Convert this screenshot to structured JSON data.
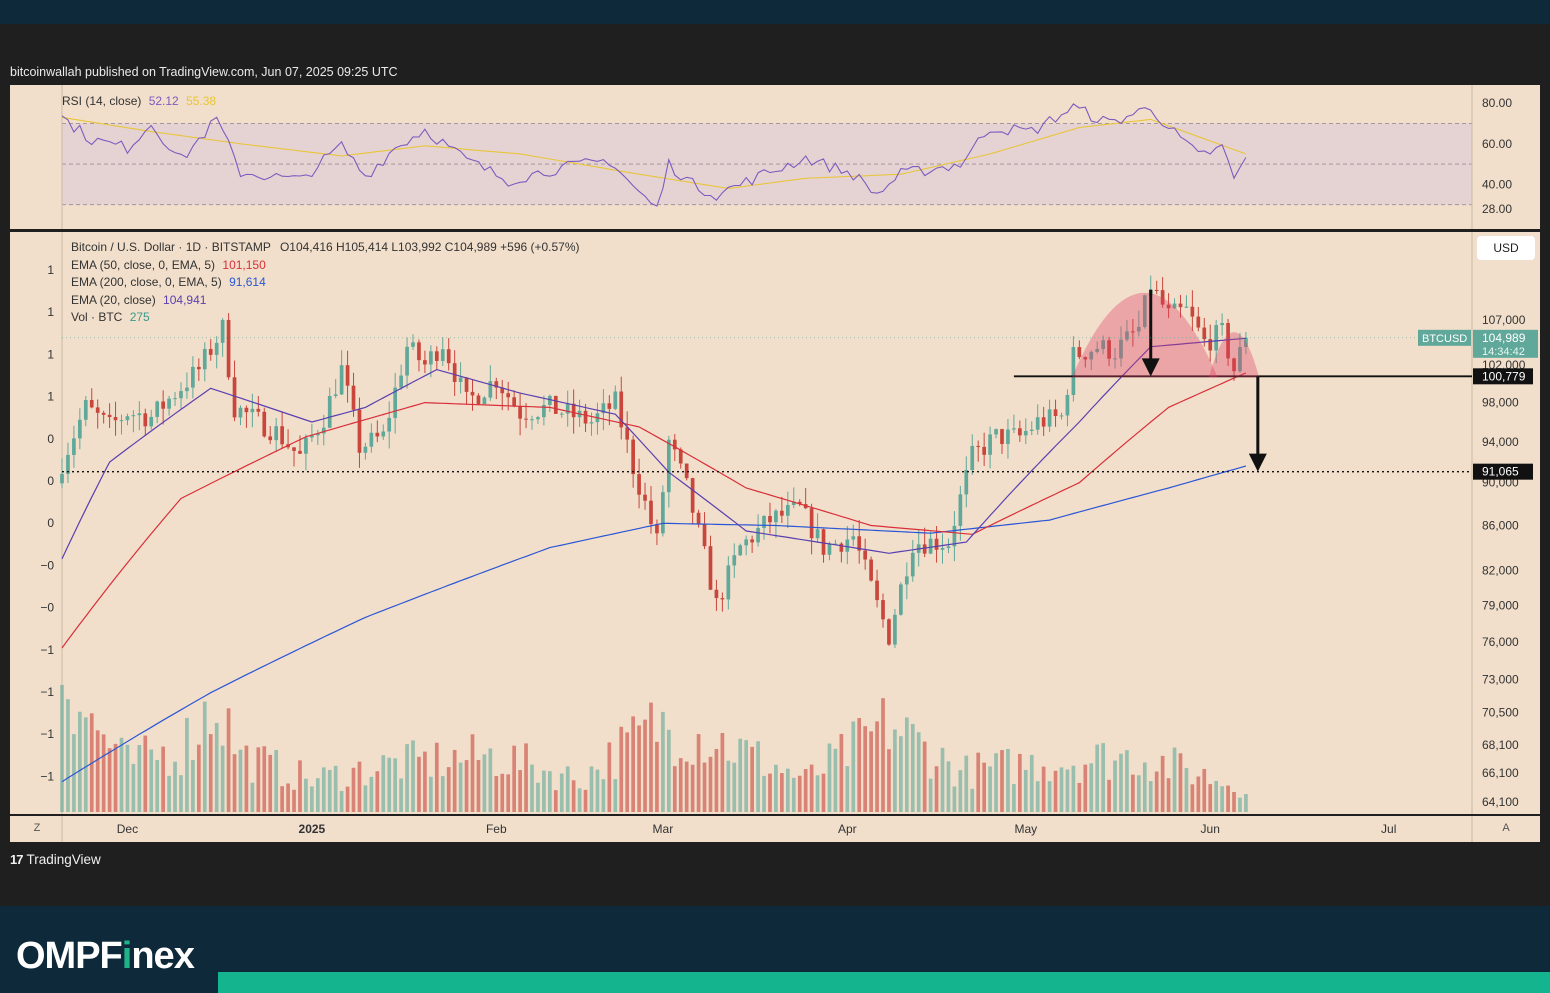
{
  "header": {
    "publisher_line": "bitcoinwallah published on TradingView.com, Jun 07, 2025 09:25 UTC"
  },
  "rsi": {
    "label": "RSI (14, close)",
    "value": "52.12",
    "ma_value": "55.38",
    "ticks": [
      "80.00",
      "60.00",
      "40.00",
      "28.00"
    ],
    "rsi_color": "#7e5bbf",
    "ma_color": "#e8c53a"
  },
  "legend": {
    "symbol": "Bitcoin / U.S. Dollar · 1D · BITSTAMP",
    "ohlc": "O104,416 H105,414 L103,992 C104,989 +596 (+0.57%)",
    "ema50_label": "EMA (50, close, 0, EMA, 5)",
    "ema50_value": "101,150",
    "ema200_label": "EMA (200, close, 0, EMA, 5)",
    "ema200_value": "91,614",
    "ema20_label": "EMA (20, close)",
    "ema20_value": "104,941",
    "vol_label": "Vol · BTC",
    "vol_value": "275"
  },
  "price_axis": {
    "ticks": [
      "107,000",
      "102,000",
      "98,000",
      "94,000",
      "90,000",
      "86,000",
      "82,000",
      "79,000",
      "76,000",
      "73,000",
      "70,500",
      "68,100",
      "66,100",
      "64,100"
    ],
    "currency_button": "USD",
    "symbol_tag": "BTCUSD",
    "last_price": "104,989",
    "countdown": "14:34:42",
    "support_label": "100,779",
    "target_label": "91,065"
  },
  "left_axis_ticks": [
    "1",
    "1",
    "1",
    "1",
    "0",
    "0",
    "0",
    "−0",
    "−0",
    "−1",
    "−1",
    "−1",
    "−1"
  ],
  "time_axis": {
    "labels": [
      "Dec",
      "2025",
      "Feb",
      "Mar",
      "Apr",
      "May",
      "Jun",
      "Jul"
    ],
    "left_button": "Z",
    "right_button": "A"
  },
  "footer": {
    "tradingview": "TradingView",
    "brand_part1": "OMPF",
    "brand_i": "i",
    "brand_part2": "nex"
  },
  "colors": {
    "up": "#5fa89a",
    "down": "#c8463c",
    "ema20": "#5a3fb0",
    "ema50": "#d92f3a",
    "ema200": "#2a56d6",
    "pattern": "#e23c63",
    "panel": "#f1dfcb"
  },
  "chart_data": {
    "type": "candlestick",
    "title": "Bitcoin / U.S. Dollar · 1D · BITSTAMP",
    "x_labels": [
      "Dec",
      "2025",
      "Feb",
      "Mar",
      "Apr",
      "May",
      "Jun",
      "Jul"
    ],
    "x_start": "2024-11-20",
    "x_end": "2025-07-15",
    "ylim": [
      64100,
      112000
    ],
    "y_scale": "log",
    "grid": false,
    "pivots": [
      [
        "2024-11-20",
        92000
      ],
      [
        "2024-11-24",
        97500
      ],
      [
        "2024-11-28",
        95500
      ],
      [
        "2024-12-01",
        97000
      ],
      [
        "2024-12-05",
        96500
      ],
      [
        "2024-12-09",
        99000
      ],
      [
        "2024-12-13",
        101500
      ],
      [
        "2024-12-17",
        106000
      ],
      [
        "2024-12-19",
        97500
      ],
      [
        "2024-12-26",
        95000
      ],
      [
        "2024-12-30",
        92500
      ],
      [
        "2025-01-03",
        96500
      ],
      [
        "2025-01-06",
        101500
      ],
      [
        "2025-01-09",
        93500
      ],
      [
        "2025-01-13",
        94500
      ],
      [
        "2025-01-17",
        104000
      ],
      [
        "2025-01-20",
        102000
      ],
      [
        "2025-01-23",
        104500
      ],
      [
        "2025-01-27",
        98000
      ],
      [
        "2025-02-01",
        100500
      ],
      [
        "2025-02-05",
        97000
      ],
      [
        "2025-02-10",
        97500
      ],
      [
        "2025-02-17",
        96000
      ],
      [
        "2025-02-21",
        98000
      ],
      [
        "2025-02-24",
        91500
      ],
      [
        "2025-02-28",
        84500
      ],
      [
        "2025-03-02",
        94000
      ],
      [
        "2025-03-05",
        89500
      ],
      [
        "2025-03-10",
        79000
      ],
      [
        "2025-03-14",
        84000
      ],
      [
        "2025-03-19",
        86500
      ],
      [
        "2025-03-24",
        87500
      ],
      [
        "2025-03-28",
        84000
      ],
      [
        "2025-04-02",
        85000
      ],
      [
        "2025-04-06",
        79000
      ],
      [
        "2025-04-08",
        76500
      ],
      [
        "2025-04-12",
        84500
      ],
      [
        "2025-04-18",
        84500
      ],
      [
        "2025-04-22",
        92500
      ],
      [
        "2025-04-26",
        94500
      ],
      [
        "2025-04-30",
        94500
      ],
      [
        "2025-05-03",
        96000
      ],
      [
        "2025-05-07",
        96500
      ],
      [
        "2025-05-09",
        103000
      ],
      [
        "2025-05-13",
        104000
      ],
      [
        "2025-05-16",
        103500
      ],
      [
        "2025-05-20",
        106000
      ],
      [
        "2025-05-22",
        111000
      ],
      [
        "2025-05-25",
        107500
      ],
      [
        "2025-05-28",
        108000
      ],
      [
        "2025-05-31",
        104500
      ],
      [
        "2025-06-03",
        105500
      ],
      [
        "2025-06-05",
        101500
      ],
      [
        "2025-06-07",
        104989
      ]
    ],
    "ema20_pivots": [
      [
        "2024-11-20",
        83000
      ],
      [
        "2024-11-28",
        92000
      ],
      [
        "2024-12-15",
        99500
      ],
      [
        "2025-01-01",
        96000
      ],
      [
        "2025-01-10",
        97500
      ],
      [
        "2025-01-22",
        101500
      ],
      [
        "2025-02-05",
        99000
      ],
      [
        "2025-02-21",
        96800
      ],
      [
        "2025-03-02",
        91000
      ],
      [
        "2025-03-15",
        85500
      ],
      [
        "2025-04-08",
        83500
      ],
      [
        "2025-04-21",
        84500
      ],
      [
        "2025-05-10",
        96000
      ],
      [
        "2025-05-22",
        104000
      ],
      [
        "2025-06-07",
        104941
      ]
    ],
    "ema50_pivots": [
      [
        "2024-11-20",
        75500
      ],
      [
        "2024-12-10",
        88500
      ],
      [
        "2024-12-31",
        94500
      ],
      [
        "2025-01-20",
        98000
      ],
      [
        "2025-02-10",
        97500
      ],
      [
        "2025-02-25",
        95500
      ],
      [
        "2025-03-15",
        89500
      ],
      [
        "2025-04-05",
        86000
      ],
      [
        "2025-04-22",
        85200
      ],
      [
        "2025-05-10",
        90000
      ],
      [
        "2025-05-25",
        97500
      ],
      [
        "2025-06-07",
        101150
      ]
    ],
    "ema200_pivots": [
      [
        "2024-11-20",
        65500
      ],
      [
        "2024-12-15",
        72000
      ],
      [
        "2025-01-10",
        78000
      ],
      [
        "2025-02-10",
        84000
      ],
      [
        "2025-03-01",
        86200
      ],
      [
        "2025-03-20",
        86000
      ],
      [
        "2025-04-15",
        85300
      ],
      [
        "2025-05-05",
        86500
      ],
      [
        "2025-05-25",
        89500
      ],
      [
        "2025-06-07",
        91614
      ]
    ],
    "rsi_pivots": [
      [
        "2024-11-20",
        73
      ],
      [
        "2024-11-25",
        62
      ],
      [
        "2024-12-01",
        58
      ],
      [
        "2024-12-05",
        70
      ],
      [
        "2024-12-10",
        52
      ],
      [
        "2024-12-16",
        72
      ],
      [
        "2024-12-20",
        46
      ],
      [
        "2024-12-30",
        42
      ],
      [
        "2025-01-06",
        59
      ],
      [
        "2025-01-10",
        44
      ],
      [
        "2025-01-15",
        58
      ],
      [
        "2025-01-20",
        67
      ],
      [
        "2025-01-27",
        52
      ],
      [
        "2025-02-03",
        42
      ],
      [
        "2025-02-10",
        47
      ],
      [
        "2025-02-20",
        52
      ],
      [
        "2025-02-25",
        36
      ],
      [
        "2025-02-28",
        28
      ],
      [
        "2025-03-02",
        50
      ],
      [
        "2025-03-06",
        40
      ],
      [
        "2025-03-10",
        35
      ],
      [
        "2025-03-18",
        45
      ],
      [
        "2025-03-25",
        53
      ],
      [
        "2025-04-02",
        45
      ],
      [
        "2025-04-06",
        35
      ],
      [
        "2025-04-10",
        45
      ],
      [
        "2025-04-20",
        50
      ],
      [
        "2025-04-25",
        68
      ],
      [
        "2025-05-02",
        66
      ],
      [
        "2025-05-09",
        78
      ],
      [
        "2025-05-15",
        70
      ],
      [
        "2025-05-22",
        78
      ],
      [
        "2025-05-25",
        68
      ],
      [
        "2025-05-30",
        54
      ],
      [
        "2025-06-03",
        58
      ],
      [
        "2025-06-05",
        43
      ],
      [
        "2025-06-07",
        52
      ]
    ],
    "rsi_ma_pivots": [
      [
        "2024-11-20",
        73
      ],
      [
        "2024-12-05",
        66
      ],
      [
        "2024-12-20",
        60
      ],
      [
        "2025-01-06",
        54
      ],
      [
        "2025-01-20",
        59
      ],
      [
        "2025-02-05",
        55
      ],
      [
        "2025-02-25",
        45
      ],
      [
        "2025-03-12",
        38
      ],
      [
        "2025-03-25",
        43
      ],
      [
        "2025-04-10",
        45
      ],
      [
        "2025-04-25",
        55
      ],
      [
        "2025-05-10",
        68
      ],
      [
        "2025-05-22",
        72
      ],
      [
        "2025-06-07",
        55
      ]
    ],
    "volume_pivots": [
      [
        "2024-11-20",
        0.95
      ],
      [
        "2024-11-25",
        0.55
      ],
      [
        "2024-12-01",
        0.3
      ],
      [
        "2024-12-10",
        0.4
      ],
      [
        "2024-12-16",
        0.7
      ],
      [
        "2024-12-20",
        0.35
      ],
      [
        "2025-01-01",
        0.2
      ],
      [
        "2025-01-15",
        0.3
      ],
      [
        "2025-02-01",
        0.35
      ],
      [
        "2025-02-15",
        0.2
      ],
      [
        "2025-02-28",
        0.55
      ],
      [
        "2025-03-10",
        0.45
      ],
      [
        "2025-03-25",
        0.2
      ],
      [
        "2025-04-08",
        0.55
      ],
      [
        "2025-04-20",
        0.25
      ],
      [
        "2025-05-01",
        0.3
      ],
      [
        "2025-05-20",
        0.35
      ],
      [
        "2025-06-07",
        0.15
      ]
    ],
    "annotations": {
      "neckline": 100779,
      "target": 91065,
      "pattern": "double top (two red arcs) with downward arrows"
    }
  }
}
